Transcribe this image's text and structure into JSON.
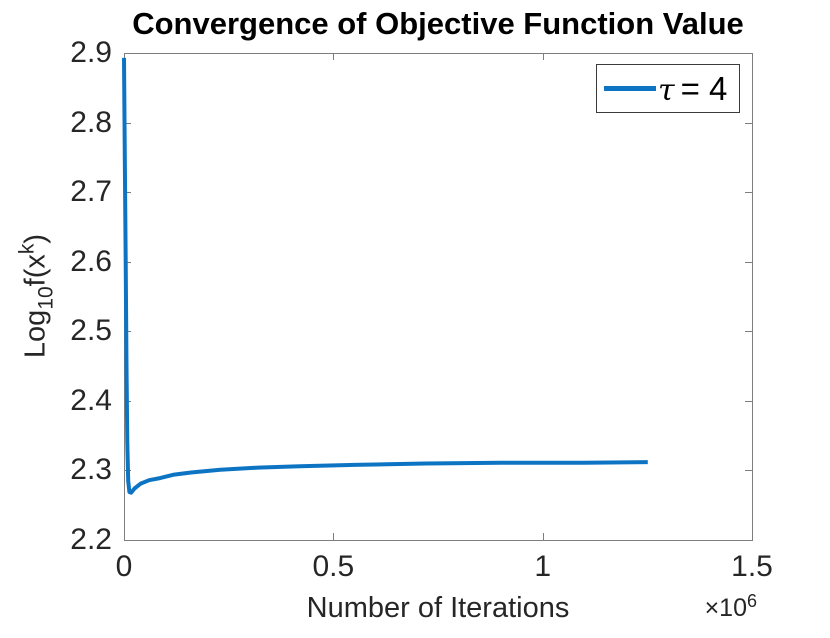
{
  "colors": {
    "line": "#0d74c4",
    "axis": "#7e7e7e",
    "text": "#262626",
    "title": "#000000",
    "legend_border": "#3c3c3c",
    "background": "#ffffff"
  },
  "chart_data": {
    "type": "line",
    "title": "Convergence of Objective Function Value",
    "xlabel": "Number of Iterations",
    "ylabel": "Log10f(x^k)",
    "ylabel_parts": {
      "prefix": "Log",
      "sub": "10",
      "mid": "f(x",
      "sup": "k",
      "suffix": ")"
    },
    "x_multiplier": "×10^6",
    "x_multiplier_parts": {
      "base": "×10",
      "exp": "6"
    },
    "xlim": [
      0,
      1500000
    ],
    "ylim": [
      2.2,
      2.9
    ],
    "xticks": {
      "values": [
        0,
        500000,
        1000000,
        1500000
      ],
      "labels": [
        "0",
        "0.5",
        "1",
        "1.5"
      ]
    },
    "yticks": {
      "values": [
        2.2,
        2.3,
        2.4,
        2.5,
        2.6,
        2.7,
        2.8,
        2.9
      ],
      "labels": [
        "2.2",
        "2.3",
        "2.4",
        "2.5",
        "2.6",
        "2.7",
        "2.8",
        "2.9"
      ]
    },
    "grid": false,
    "legend": {
      "position": "top-right",
      "entries": [
        {
          "label": "τ = 4",
          "symbol": "τ",
          "rest": "= 4",
          "color": "#0d74c4"
        }
      ]
    },
    "series": [
      {
        "name": "τ = 4",
        "color": "#0d74c4",
        "points": [
          [
            0,
            2.893
          ],
          [
            2000,
            2.75
          ],
          [
            4000,
            2.6
          ],
          [
            6000,
            2.45
          ],
          [
            8000,
            2.34
          ],
          [
            10000,
            2.285
          ],
          [
            13000,
            2.269
          ],
          [
            17000,
            2.268
          ],
          [
            25000,
            2.274
          ],
          [
            40000,
            2.281
          ],
          [
            60000,
            2.286
          ],
          [
            86000,
            2.289
          ],
          [
            120000,
            2.294
          ],
          [
            160000,
            2.297
          ],
          [
            230000,
            2.301
          ],
          [
            320000,
            2.304
          ],
          [
            420000,
            2.306
          ],
          [
            550000,
            2.308
          ],
          [
            720000,
            2.31
          ],
          [
            900000,
            2.311
          ],
          [
            1100000,
            2.311
          ],
          [
            1251000,
            2.312
          ]
        ]
      }
    ]
  }
}
